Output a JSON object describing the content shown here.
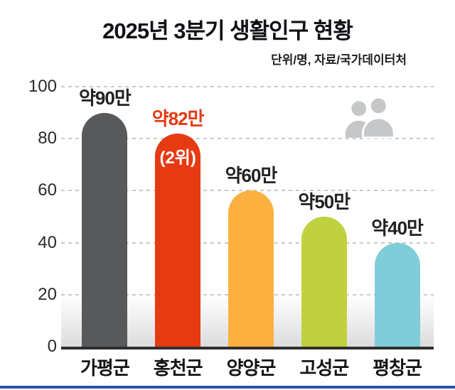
{
  "header": {
    "title": "2025년 3분기 생활인구 현황",
    "subtitle": "단위/명, 자료/국가데이터처"
  },
  "chart_data": {
    "type": "bar",
    "title": "2025년 3분기 생활인구 현황",
    "unit_source_note": "단위/명, 자료/국가데이터처",
    "categories": [
      "가평군",
      "홍천군",
      "양양군",
      "고성군",
      "평창군"
    ],
    "values": [
      90,
      82,
      60,
      50,
      40
    ],
    "value_labels": [
      "약90만",
      "약82만",
      "약60만",
      "약50만",
      "약40만"
    ],
    "bar_colors": [
      "#58595b",
      "#e63a12",
      "#fbb040",
      "#bfd13e",
      "#7ecdd9"
    ],
    "label_colors": [
      "#222222",
      "#e63a12",
      "#222222",
      "#222222",
      "#222222"
    ],
    "annotations": [
      {
        "bar_index": 1,
        "text": "(2위)",
        "color": "#ffffff"
      }
    ],
    "ylim": [
      0,
      100
    ],
    "yticks": [
      0,
      20,
      40,
      60,
      80,
      100
    ],
    "grid": "dashed horizontal gridlines",
    "legend": "none",
    "xlabel": "",
    "ylabel": ""
  },
  "icons": {
    "people_icon": "two-person-silhouette",
    "people_icon_color": "#c6c7c9"
  },
  "footer": {
    "accent_line_color": "#2a57a8"
  }
}
